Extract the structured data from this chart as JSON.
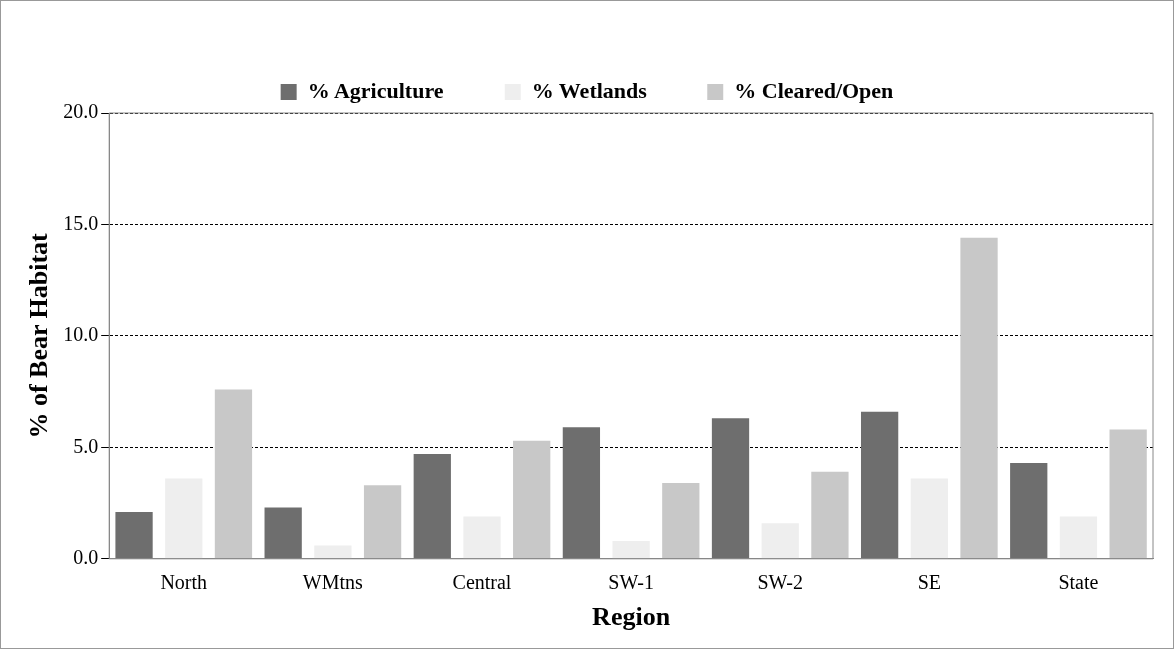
{
  "chart_data": {
    "type": "bar",
    "xlabel": "Region",
    "ylabel": "% of Bear Habitat",
    "categories": [
      "North",
      "WMtns",
      "Central",
      "SW-1",
      "SW-2",
      "SE",
      "State"
    ],
    "series": [
      {
        "name": "% Agriculture",
        "color": "#6e6e6e",
        "values": [
          2.1,
          2.3,
          4.7,
          5.9,
          6.3,
          6.6,
          4.3
        ]
      },
      {
        "name": "% Wetlands",
        "color": "#eeeeee",
        "values": [
          3.6,
          0.6,
          1.9,
          0.8,
          1.6,
          3.6,
          1.9
        ]
      },
      {
        "name": "% Cleared/Open",
        "color": "#c8c8c8",
        "values": [
          7.6,
          3.3,
          5.3,
          3.4,
          3.9,
          14.4,
          5.8
        ]
      }
    ],
    "ylim": [
      0,
      20
    ],
    "yticks": [
      {
        "value": 0,
        "label": "0.0"
      },
      {
        "value": 5,
        "label": "5.0"
      },
      {
        "value": 10,
        "label": "10.0"
      },
      {
        "value": 15,
        "label": "15.0"
      },
      {
        "value": 20,
        "label": "20.0"
      }
    ],
    "grid": "y",
    "legend": "top"
  }
}
